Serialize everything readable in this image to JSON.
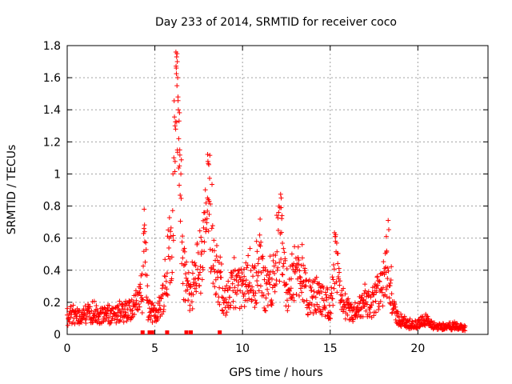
{
  "chart_data": {
    "type": "scatter",
    "title": "Day 233 of 2014, SRMTID for receiver coco",
    "xlabel": "GPS time / hours",
    "ylabel": "SRMTID / TECUs",
    "xlim": [
      0,
      24
    ],
    "ylim": [
      0,
      1.8
    ],
    "xticks": [
      "0",
      "5",
      "10",
      "15",
      "20"
    ],
    "yticks": [
      "0",
      "0.2",
      "0.4",
      "0.6",
      "0.8",
      "1",
      "1.2",
      "1.4",
      "1.6",
      "1.8"
    ],
    "marker": "+",
    "color": "#ff0000",
    "grid": true,
    "series": [
      {
        "name": "SRMTID",
        "profile": [
          [
            0.0,
            0.1
          ],
          [
            0.5,
            0.12
          ],
          [
            1.0,
            0.11
          ],
          [
            1.5,
            0.13
          ],
          [
            2.0,
            0.12
          ],
          [
            2.5,
            0.11
          ],
          [
            3.0,
            0.13
          ],
          [
            3.5,
            0.15
          ],
          [
            4.0,
            0.2
          ],
          [
            4.3,
            0.24
          ],
          [
            4.4,
            0.65
          ],
          [
            4.6,
            0.16
          ],
          [
            5.0,
            0.12
          ],
          [
            5.3,
            0.18
          ],
          [
            5.6,
            0.3
          ],
          [
            5.9,
            0.5
          ],
          [
            6.1,
            0.9
          ],
          [
            6.25,
            1.65
          ],
          [
            6.35,
            1.45
          ],
          [
            6.45,
            0.9
          ],
          [
            6.6,
            0.4
          ],
          [
            7.0,
            0.25
          ],
          [
            7.4,
            0.35
          ],
          [
            7.7,
            0.45
          ],
          [
            8.0,
            0.82
          ],
          [
            8.3,
            0.55
          ],
          [
            8.6,
            0.35
          ],
          [
            9.0,
            0.2
          ],
          [
            9.5,
            0.3
          ],
          [
            10.0,
            0.28
          ],
          [
            10.3,
            0.35
          ],
          [
            10.7,
            0.3
          ],
          [
            11.0,
            0.45
          ],
          [
            11.3,
            0.25
          ],
          [
            11.8,
            0.35
          ],
          [
            12.2,
            0.65
          ],
          [
            12.5,
            0.25
          ],
          [
            13.0,
            0.35
          ],
          [
            13.3,
            0.45
          ],
          [
            13.7,
            0.2
          ],
          [
            14.2,
            0.25
          ],
          [
            14.7,
            0.2
          ],
          [
            15.0,
            0.15
          ],
          [
            15.3,
            0.45
          ],
          [
            15.6,
            0.25
          ],
          [
            16.0,
            0.14
          ],
          [
            16.5,
            0.12
          ],
          [
            17.0,
            0.2
          ],
          [
            17.5,
            0.18
          ],
          [
            18.0,
            0.3
          ],
          [
            18.3,
            0.45
          ],
          [
            18.6,
            0.15
          ],
          [
            19.0,
            0.08
          ],
          [
            19.5,
            0.06
          ],
          [
            20.0,
            0.06
          ],
          [
            20.4,
            0.1
          ],
          [
            20.7,
            0.06
          ],
          [
            21.0,
            0.05
          ],
          [
            21.5,
            0.05
          ],
          [
            22.0,
            0.05
          ],
          [
            22.7,
            0.04
          ]
        ],
        "outliers": [
          [
            4.38,
            0.66
          ],
          [
            4.42,
            0.64
          ],
          [
            6.2,
            1.76
          ],
          [
            6.24,
            1.73
          ],
          [
            6.28,
            1.7
          ],
          [
            6.22,
            1.66
          ],
          [
            6.3,
            1.6
          ],
          [
            6.26,
            1.55
          ],
          [
            6.32,
            1.48
          ],
          [
            6.34,
            1.4
          ],
          [
            6.38,
            1.33
          ],
          [
            6.15,
            1.3
          ],
          [
            6.36,
            1.22
          ],
          [
            6.42,
            1.15
          ],
          [
            6.4,
            1.05
          ],
          [
            8.0,
            0.85
          ],
          [
            8.05,
            0.84
          ],
          [
            8.1,
            0.83
          ],
          [
            12.2,
            0.79
          ],
          [
            12.25,
            0.74
          ],
          [
            15.3,
            0.58
          ],
          [
            18.2,
            0.61
          ],
          [
            18.22,
            0.52
          ],
          [
            10.8,
            0.58
          ],
          [
            13.4,
            0.56
          ]
        ],
        "zero_points": [
          4.3,
          4.7,
          4.85,
          5.7,
          6.8,
          7.05,
          8.7
        ]
      }
    ]
  }
}
